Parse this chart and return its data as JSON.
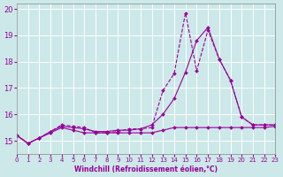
{
  "background_color": "#cce8e8",
  "grid_color": "#ffffff",
  "line_color": "#990099",
  "xlabel": "Windchill (Refroidissement éolien,°C)",
  "xlabel_color": "#990099",
  "tick_color": "#990099",
  "xmin": 0,
  "xmax": 23,
  "ymin": 14.5,
  "ymax": 20.2,
  "yticks": [
    15,
    16,
    17,
    18,
    19,
    20
  ],
  "xticks": [
    0,
    1,
    2,
    3,
    4,
    5,
    6,
    7,
    8,
    9,
    10,
    11,
    12,
    13,
    14,
    15,
    16,
    17,
    18,
    19,
    20,
    21,
    22,
    23
  ],
  "line1": {
    "x": [
      0,
      1,
      2,
      3,
      4,
      5,
      6,
      7,
      8,
      9,
      10,
      11,
      12,
      13,
      14,
      15,
      16,
      17,
      18,
      19,
      20,
      21,
      22,
      23
    ],
    "y": [
      15.2,
      14.9,
      15.1,
      15.3,
      15.5,
      15.4,
      15.3,
      15.3,
      15.3,
      15.3,
      15.3,
      15.3,
      15.3,
      15.4,
      15.5,
      15.5,
      15.5,
      15.5,
      15.5,
      15.5,
      15.5,
      15.5,
      15.5,
      15.55
    ]
  },
  "line2": {
    "x": [
      0,
      1,
      2,
      3,
      4,
      5,
      6,
      7,
      8,
      9,
      10,
      11,
      12,
      13,
      14,
      15,
      16,
      17,
      18,
      19,
      20,
      21,
      22,
      23
    ],
    "y": [
      15.2,
      14.9,
      15.1,
      15.35,
      15.55,
      15.5,
      15.45,
      15.35,
      15.35,
      15.4,
      15.4,
      15.45,
      15.6,
      16.0,
      16.6,
      17.6,
      18.8,
      19.3,
      18.1,
      17.3,
      15.9,
      15.6,
      15.6,
      15.6
    ]
  },
  "line3": {
    "x": [
      0,
      1,
      2,
      3,
      4,
      5,
      6,
      7,
      8,
      9,
      10,
      11,
      12,
      13,
      14,
      15,
      16,
      17,
      18,
      19,
      20,
      21,
      22,
      23
    ],
    "y": [
      15.2,
      14.9,
      15.1,
      15.35,
      15.6,
      15.55,
      15.5,
      15.3,
      15.3,
      15.35,
      15.45,
      15.45,
      15.5,
      16.9,
      17.55,
      19.85,
      17.65,
      19.2,
      18.1,
      17.3,
      15.9,
      15.6,
      15.6,
      15.6
    ]
  }
}
